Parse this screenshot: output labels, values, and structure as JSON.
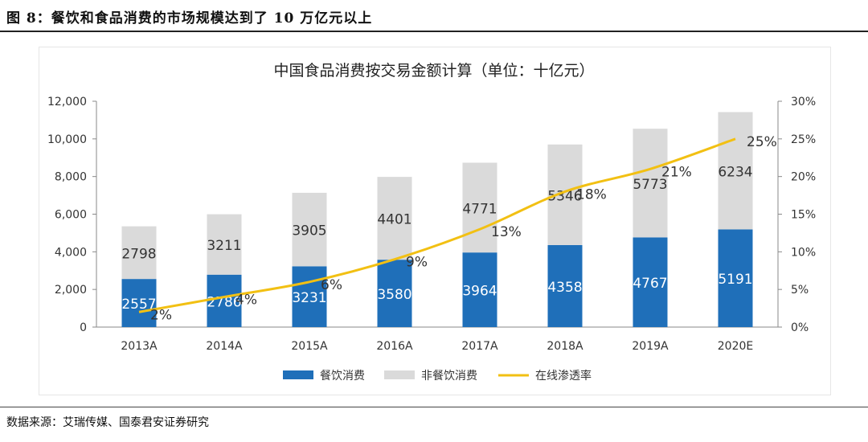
{
  "figure": {
    "title": "图 8：餐饮和食品消费的市场规模达到了 10 万亿元以上",
    "source": "数据来源：艾瑞传媒、国泰君安证券研究"
  },
  "chart_data": {
    "type": "bar",
    "stacked": true,
    "title": "中国食品消费按交易金额计算（单位：十亿元）",
    "categories": [
      "2013A",
      "2014A",
      "2015A",
      "2016A",
      "2017A",
      "2018A",
      "2019A",
      "2020E"
    ],
    "series": [
      {
        "name": "餐饮消费",
        "values": [
          2557,
          2786,
          3231,
          3580,
          3964,
          4358,
          4767,
          5191
        ],
        "color": "#1f6fb9",
        "axis": "left"
      },
      {
        "name": "非餐饮消费",
        "values": [
          2798,
          3211,
          3905,
          4401,
          4771,
          5346,
          5773,
          6234
        ],
        "color": "#dadada",
        "axis": "left"
      },
      {
        "name": "在线渗透率",
        "type": "line",
        "values": [
          2,
          4,
          6,
          9,
          13,
          18,
          21,
          25
        ],
        "color": "#f2c013",
        "axis": "right"
      }
    ],
    "y_left": {
      "ylim": [
        0,
        12000
      ],
      "ticks": [
        "0",
        "2,000",
        "4,000",
        "6,000",
        "8,000",
        "10,000",
        "12,000"
      ]
    },
    "y_right": {
      "ylim": [
        0,
        30
      ],
      "ticks": [
        "0%",
        "5%",
        "10%",
        "15%",
        "20%",
        "25%",
        "30%"
      ]
    },
    "legend": "bottom",
    "grid": false
  }
}
